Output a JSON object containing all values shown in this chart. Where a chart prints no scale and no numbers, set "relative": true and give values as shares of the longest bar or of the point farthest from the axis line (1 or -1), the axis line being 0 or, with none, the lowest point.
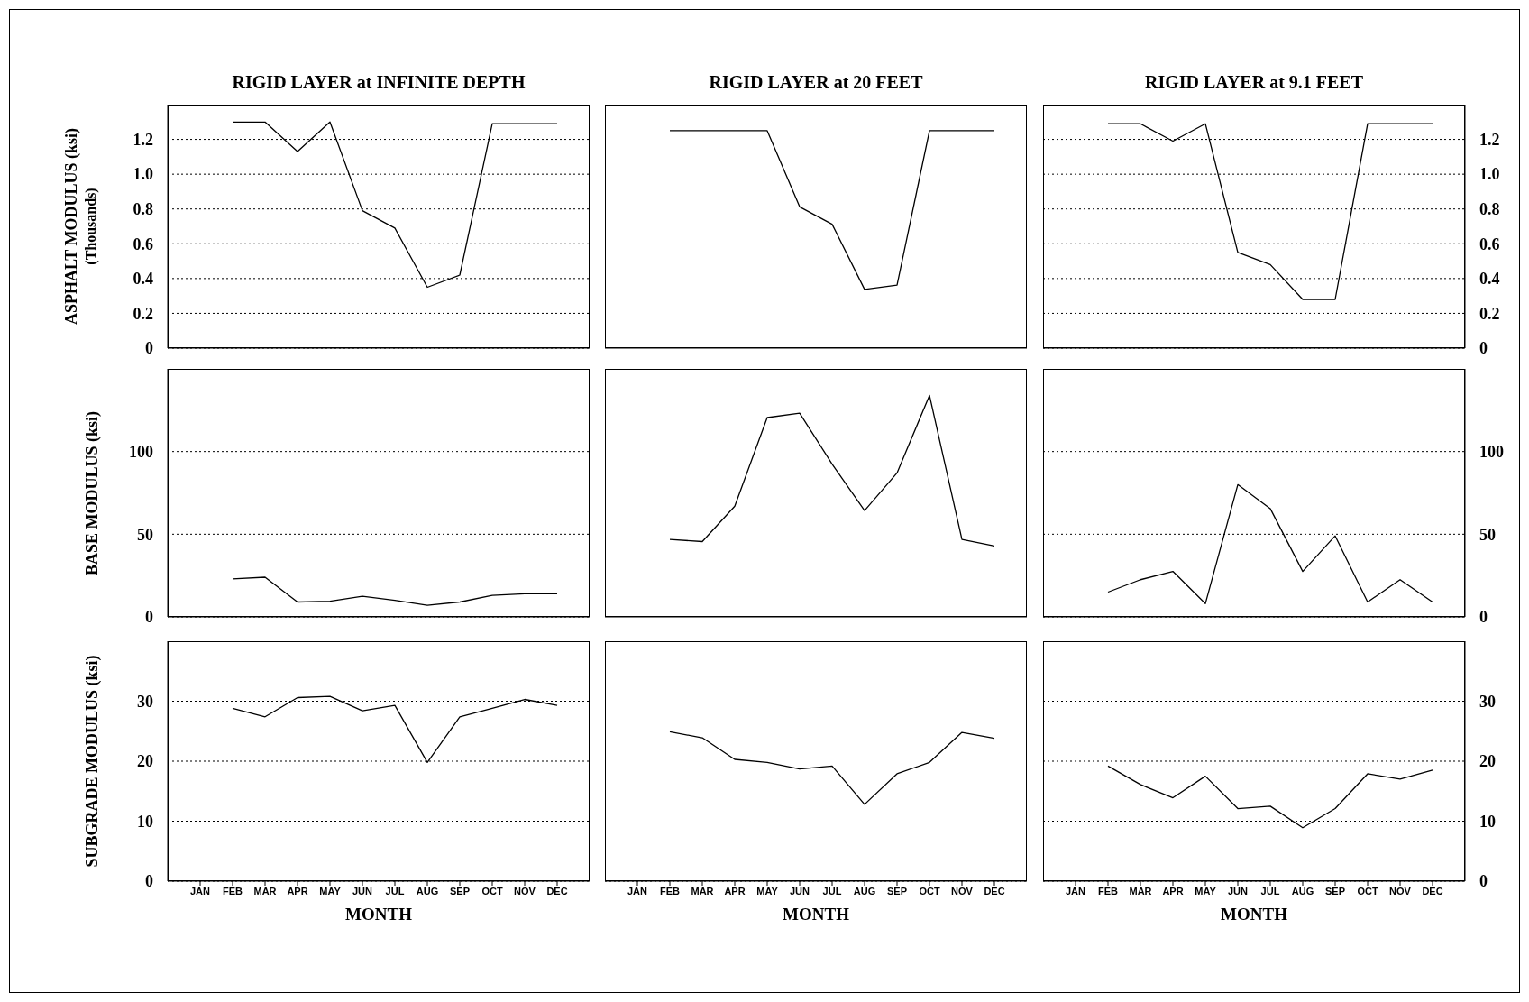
{
  "chart_data": [
    {
      "type": "line",
      "title": "RIGID LAYER at INFINITE DEPTH",
      "ylabel": "ASPHALT MODULUS (ksi)\n(Thousands)",
      "categories": [
        null,
        null,
        null,
        null,
        null,
        null,
        null,
        null,
        null,
        null,
        null
      ],
      "values": [
        1.3,
        1.3,
        1.13,
        1.3,
        0.79,
        0.69,
        0.35,
        0.42,
        1.29,
        1.29,
        1.29
      ],
      "color": "#000000",
      "ylim": [
        0,
        1.4
      ],
      "yticks": [
        0,
        0.2,
        0.4,
        0.6,
        0.8,
        {
          "value": 1,
          "label": "1.0"
        },
        1.2
      ],
      "grid": "y",
      "tick_labels": "y"
    },
    {
      "type": "line",
      "title": "RIGID LAYER at 20 FEET",
      "categories": [
        null,
        null,
        null,
        null,
        null,
        null,
        null,
        null,
        null,
        null,
        null
      ],
      "values": [
        1,
        1,
        1,
        1,
        0.65,
        0.57,
        0.27,
        0.29,
        1,
        1,
        1
      ],
      "color": "#000000",
      "relative": true,
      "tick_labels": false
    },
    {
      "type": "line",
      "title": "RIGID LAYER at 9.1 FEET",
      "categories": [
        null,
        null,
        null,
        null,
        null,
        null,
        null,
        null,
        null,
        null,
        null
      ],
      "values": [
        1.29,
        1.29,
        1.19,
        1.29,
        0.55,
        0.48,
        0.28,
        0.28,
        1.29,
        1.29,
        1.29
      ],
      "color": "#000000",
      "ylim": [
        0,
        1.4
      ],
      "yticks": [
        0,
        0.2,
        0.4,
        0.6,
        0.8,
        {
          "value": 1,
          "label": "1.0"
        },
        1.2
      ],
      "grid": "y",
      "tick_labels": "y"
    },
    {
      "type": "line",
      "ylabel": "BASE MODULUS (ksi)",
      "categories": [
        null,
        null,
        null,
        null,
        null,
        null,
        null,
        null,
        null,
        null,
        null
      ],
      "values": [
        23,
        24,
        9,
        9.5,
        12.5,
        10,
        7,
        9,
        13,
        14,
        14
      ],
      "color": "#000000",
      "ylim": [
        0,
        150
      ],
      "yticks": [
        0,
        50,
        100
      ],
      "grid": "y",
      "tick_labels": "y"
    },
    {
      "type": "line",
      "categories": [
        null,
        null,
        null,
        null,
        null,
        null,
        null,
        null,
        null,
        null,
        null
      ],
      "values": [
        0.35,
        0.34,
        0.5,
        0.9,
        0.92,
        0.69,
        0.48,
        0.65,
        1,
        0.35,
        0.32
      ],
      "color": "#000000",
      "relative": true,
      "tick_labels": false
    },
    {
      "type": "line",
      "categories": [
        null,
        null,
        null,
        null,
        null,
        null,
        null,
        null,
        null,
        null,
        null
      ],
      "values": [
        15,
        22.5,
        27.5,
        8,
        80,
        65.5,
        27.5,
        49,
        9,
        22.5,
        9
      ],
      "color": "#000000",
      "ylim": [
        0,
        150
      ],
      "yticks": [
        0,
        50,
        100
      ],
      "grid": "y",
      "tick_labels": "y"
    },
    {
      "type": "line",
      "ylabel": "SUBGRADE MODULUS (ksi)",
      "xlabel": "MONTH",
      "categories": [
        "JAN",
        "FEB",
        "MAR",
        "APR",
        "MAY",
        "JUN",
        "JUL",
        "AUG",
        "SEP",
        "OCT",
        "NOV",
        "DEC"
      ],
      "values": [
        null,
        28.8,
        27.4,
        30.6,
        30.8,
        28.4,
        29.3,
        19.8,
        27.4,
        28.8,
        30.3,
        29.3
      ],
      "color": "#000000",
      "ylim": [
        0,
        40
      ],
      "yticks": [
        0,
        10,
        20,
        30
      ],
      "grid": "y"
    },
    {
      "type": "line",
      "xlabel": "MONTH",
      "categories": [
        "JAN",
        "FEB",
        "MAR",
        "APR",
        "MAY",
        "JUN",
        "JUL",
        "AUG",
        "SEP",
        "OCT",
        "NOV",
        "DEC"
      ],
      "values": [
        null,
        24.9,
        23.9,
        20.3,
        19.8,
        18.7,
        19.2,
        12.8,
        17.9,
        19.8,
        24.8,
        23.8
      ],
      "color": "#000000",
      "ylim": [
        0,
        40
      ],
      "yticks": [
        0,
        10,
        20,
        30
      ],
      "grid": "y",
      "tick_labels": "x"
    },
    {
      "type": "line",
      "xlabel": "MONTH",
      "categories": [
        "JAN",
        "FEB",
        "MAR",
        "APR",
        "MAY",
        "JUN",
        "JUL",
        "AUG",
        "SEP",
        "OCT",
        "NOV",
        "DEC"
      ],
      "values": [
        null,
        19.2,
        16.1,
        13.9,
        17.5,
        12.1,
        12.5,
        8.9,
        12.1,
        17.9,
        17,
        18.5
      ],
      "color": "#000000",
      "ylim": [
        0,
        40
      ],
      "yticks": [
        0,
        10,
        20,
        30
      ],
      "grid": "y"
    }
  ]
}
